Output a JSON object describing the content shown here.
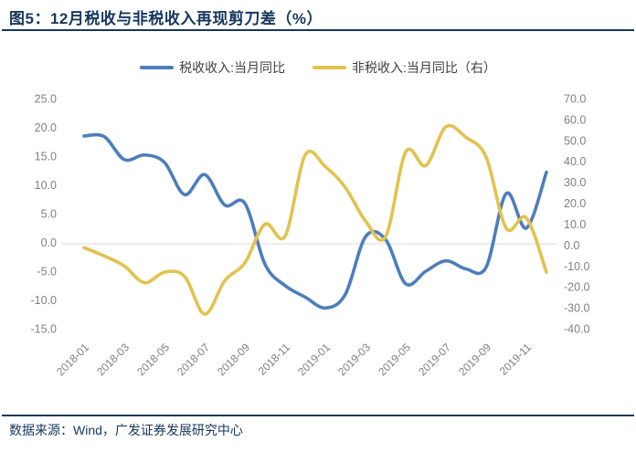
{
  "header": {
    "title": "图5：12月税收与非税收入再现剪刀差（%）"
  },
  "footer": {
    "source": "数据来源：Wind，广发证券发展研究中心"
  },
  "colors": {
    "tax_line": "#4d7dbd",
    "nontax_line": "#e2c24f",
    "navy": "#17375e",
    "axis_label_gray": "#7f7f7f",
    "zero_gridline": "#d9d9d9",
    "legend_text": "#404040"
  },
  "chart_data": {
    "type": "line",
    "title": "12月税收与非税收入再现剪刀差（%）",
    "categories": [
      "2018-01",
      "2018-02",
      "2018-03",
      "2018-04",
      "2018-05",
      "2018-06",
      "2018-07",
      "2018-08",
      "2018-09",
      "2018-10",
      "2018-11",
      "2018-12",
      "2019-01",
      "2019-02",
      "2019-03",
      "2019-04",
      "2019-05",
      "2019-06",
      "2019-07",
      "2019-08",
      "2019-09",
      "2019-10",
      "2019-11",
      "2019-12"
    ],
    "x_tick_labels": [
      "2018-01",
      "2018-03",
      "2018-05",
      "2018-07",
      "2018-09",
      "2018-11",
      "2019-01",
      "2019-03",
      "2019-05",
      "2019-07",
      "2019-09",
      "2019-11"
    ],
    "series": [
      {
        "name": "税收收入:当月同比",
        "axis": "left",
        "color": "#4d7dbd",
        "values": [
          18.5,
          18.4,
          14.4,
          15.2,
          13.9,
          8.3,
          11.8,
          6.5,
          6.8,
          -3.8,
          -7.5,
          -9.5,
          -11.4,
          -9.0,
          1.0,
          0.5,
          -7.2,
          -5.0,
          -3.2,
          -4.6,
          -4.3,
          8.5,
          2.5,
          12.2
        ]
      },
      {
        "name": "非税收入:当月同比（右）",
        "axis": "right",
        "color": "#e2c24f",
        "values": [
          -1.3,
          -5.2,
          -10.0,
          -18.0,
          -13.0,
          -15.0,
          -33.0,
          -17.0,
          -8.5,
          10.0,
          4.3,
          43.0,
          37.5,
          27.5,
          11.5,
          4.0,
          44.5,
          38.0,
          56.5,
          51.5,
          42.0,
          8.0,
          13.0,
          -13.0
        ]
      }
    ],
    "left_axis": {
      "min": -15,
      "max": 25,
      "step": 5,
      "tick_labels": [
        "25.0",
        "20.0",
        "15.0",
        "10.0",
        "5.0",
        "0.0",
        "-5.0",
        "-10.0",
        "-15.0"
      ]
    },
    "right_axis": {
      "min": -40,
      "max": 70,
      "step": 10,
      "tick_labels": [
        "70.0",
        "60.0",
        "50.0",
        "40.0",
        "30.0",
        "20.0",
        "10.0",
        "0.0",
        "-10.0",
        "-20.0",
        "-30.0",
        "-40.0"
      ]
    },
    "legend_position": "top",
    "grid": "zero-line-only"
  }
}
